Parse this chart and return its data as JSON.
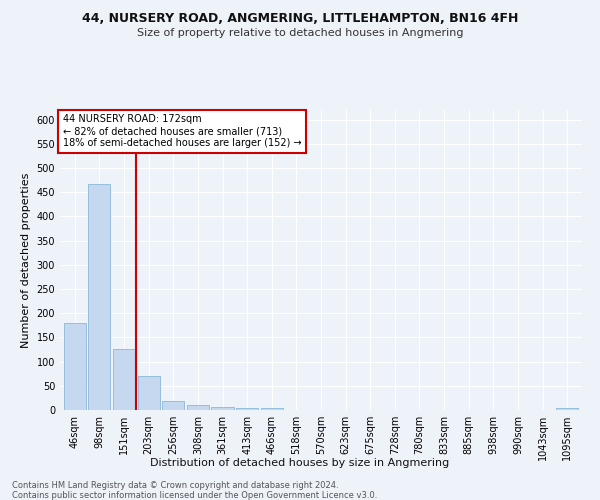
{
  "title": "44, NURSERY ROAD, ANGMERING, LITTLEHAMPTON, BN16 4FH",
  "subtitle": "Size of property relative to detached houses in Angmering",
  "xlabel": "Distribution of detached houses by size in Angmering",
  "ylabel": "Number of detached properties",
  "bar_color": "#c5d8f0",
  "bar_edge_color": "#7aafd4",
  "vline_color": "#cc0000",
  "vline_x": 2.5,
  "annotation_text": "44 NURSERY ROAD: 172sqm\n← 82% of detached houses are smaller (713)\n18% of semi-detached houses are larger (152) →",
  "annotation_box_color": "white",
  "annotation_box_edge_color": "#cc0000",
  "categories": [
    "46sqm",
    "98sqm",
    "151sqm",
    "203sqm",
    "256sqm",
    "308sqm",
    "361sqm",
    "413sqm",
    "466sqm",
    "518sqm",
    "570sqm",
    "623sqm",
    "675sqm",
    "728sqm",
    "780sqm",
    "833sqm",
    "885sqm",
    "938sqm",
    "990sqm",
    "1043sqm",
    "1095sqm"
  ],
  "values": [
    180,
    468,
    126,
    70,
    18,
    11,
    7,
    5,
    5,
    0,
    0,
    0,
    0,
    0,
    0,
    0,
    0,
    0,
    0,
    0,
    5
  ],
  "ylim": [
    0,
    620
  ],
  "yticks": [
    0,
    50,
    100,
    150,
    200,
    250,
    300,
    350,
    400,
    450,
    500,
    550,
    600
  ],
  "footer_line1": "Contains HM Land Registry data © Crown copyright and database right 2024.",
  "footer_line2": "Contains public sector information licensed under the Open Government Licence v3.0.",
  "bg_color": "#eef2f9",
  "grid_color": "#ffffff",
  "title_fontsize": 9,
  "subtitle_fontsize": 8,
  "ylabel_fontsize": 8,
  "xlabel_fontsize": 8,
  "tick_fontsize": 7,
  "footer_fontsize": 6
}
